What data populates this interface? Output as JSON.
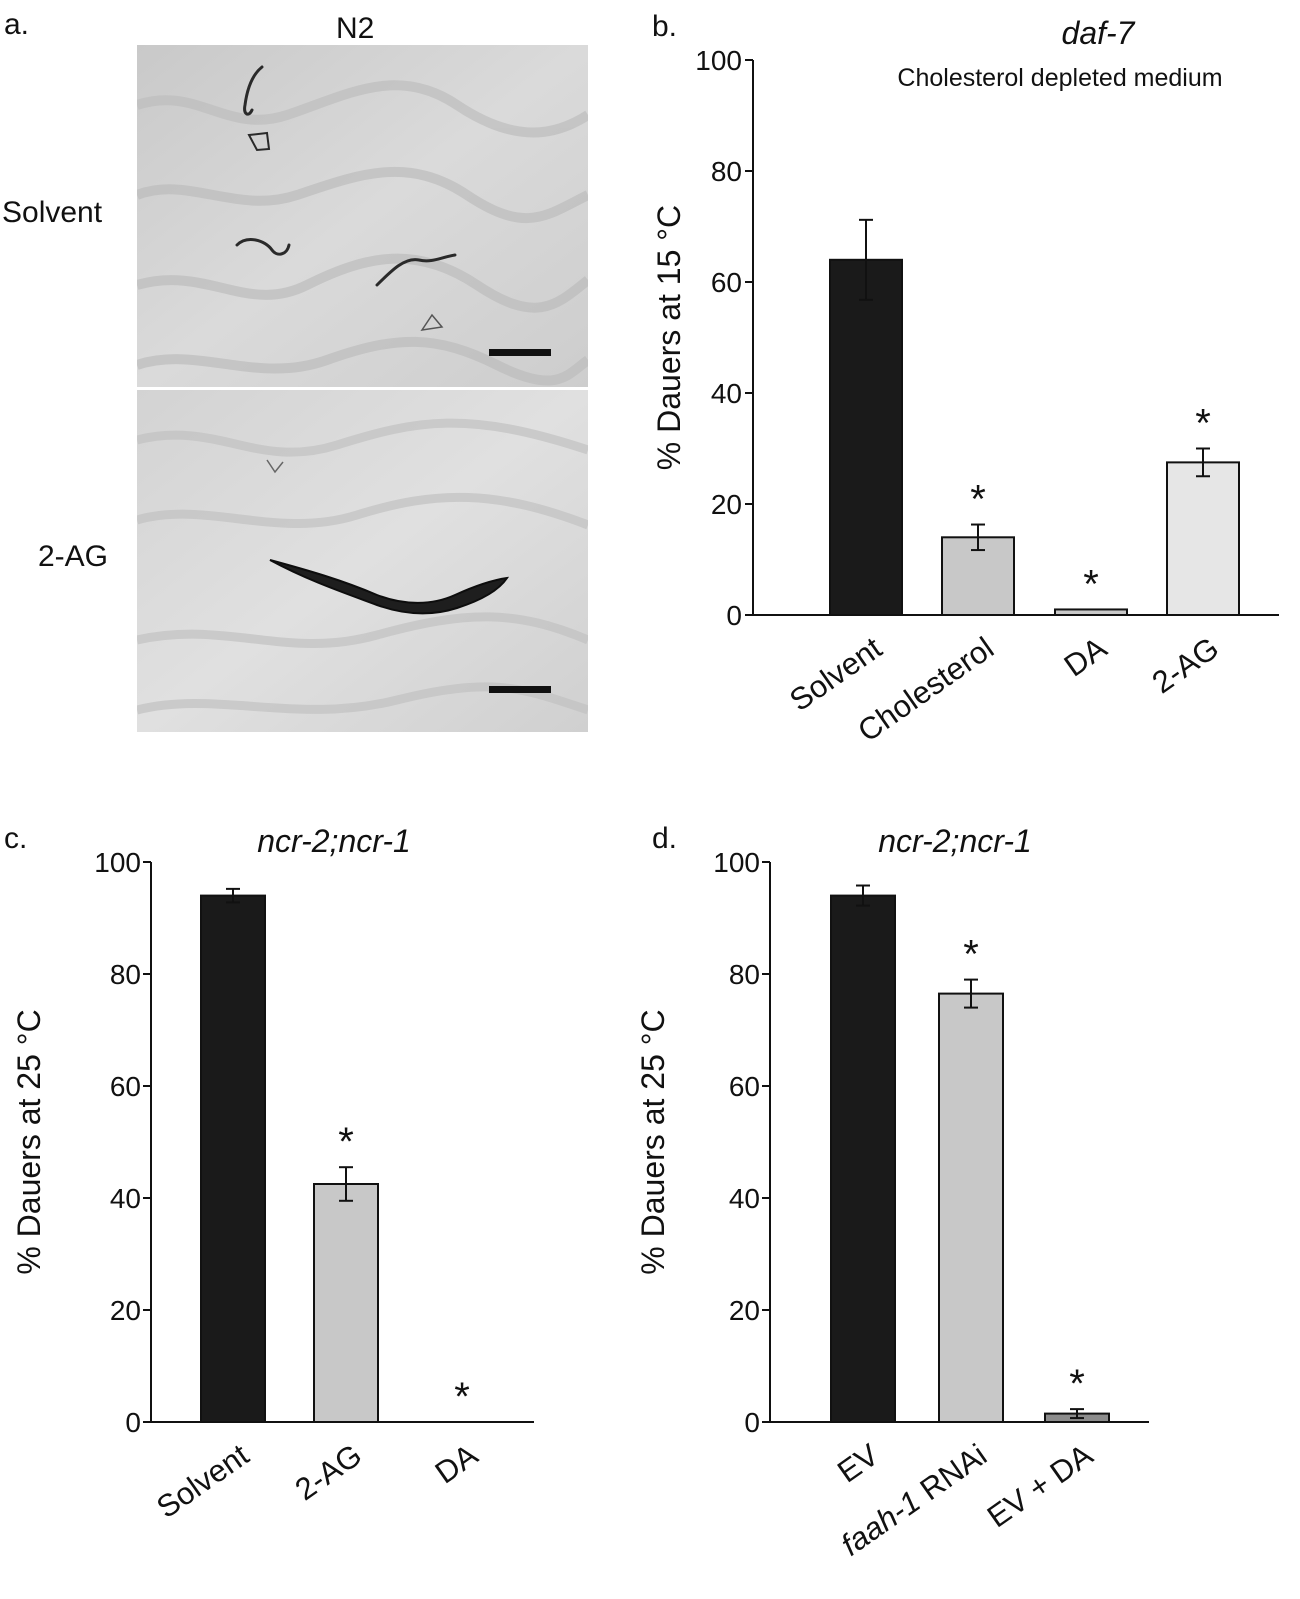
{
  "panel_a": {
    "label": "a.",
    "strain": "N2",
    "rows": [
      "Solvent",
      "2-AG"
    ]
  },
  "chart_data": [
    {
      "panel_label": "b.",
      "type": "bar",
      "title": "daf-7",
      "subtitle": "Cholesterol depleted medium",
      "ylabel": "% Dauers at 15 °C",
      "xlabel": "",
      "ylim": [
        0,
        100
      ],
      "yticks": [
        0,
        20,
        40,
        60,
        80,
        100
      ],
      "categories": [
        "Solvent",
        "Cholesterol",
        "DA",
        "2-AG"
      ],
      "values": [
        64,
        14,
        1,
        27.5
      ],
      "errors": [
        7.2,
        2.3,
        0,
        2.5
      ],
      "significant": [
        false,
        true,
        true,
        true
      ],
      "bar_colors": [
        "#1a1a1a",
        "#c8c8c8",
        "#c8c8c8",
        "#e6e6e6"
      ],
      "label_italic": [
        false,
        false,
        false,
        false
      ]
    },
    {
      "panel_label": "c.",
      "type": "bar",
      "title": "ncr-2;ncr-1",
      "ylabel": "% Dauers at 25 °C",
      "xlabel": "",
      "ylim": [
        0,
        100
      ],
      "yticks": [
        0,
        20,
        40,
        60,
        80,
        100
      ],
      "categories": [
        "Solvent",
        "2-AG",
        "DA"
      ],
      "values": [
        94,
        42.5,
        0
      ],
      "errors": [
        1.2,
        3,
        0
      ],
      "significant": [
        false,
        true,
        true
      ],
      "bar_colors": [
        "#1a1a1a",
        "#c8c8c8",
        "#c8c8c8"
      ]
    },
    {
      "panel_label": "d.",
      "type": "bar",
      "title": "ncr-2;ncr-1",
      "ylabel": "% Dauers at 25 °C",
      "xlabel": "",
      "ylim": [
        0,
        100
      ],
      "yticks": [
        0,
        20,
        40,
        60,
        80,
        100
      ],
      "categories": [
        "EV",
        "faah-1 RNAi",
        "EV + DA"
      ],
      "category_parts": [
        [
          "EV",
          ""
        ],
        [
          "faah-1",
          " RNAi"
        ],
        [
          "EV + DA",
          ""
        ]
      ],
      "values": [
        94,
        76.5,
        1.5
      ],
      "errors": [
        1.8,
        2.5,
        0.8
      ],
      "significant": [
        false,
        true,
        true
      ],
      "bar_colors": [
        "#1a1a1a",
        "#c8c8c8",
        "#8c8c8c"
      ]
    }
  ]
}
